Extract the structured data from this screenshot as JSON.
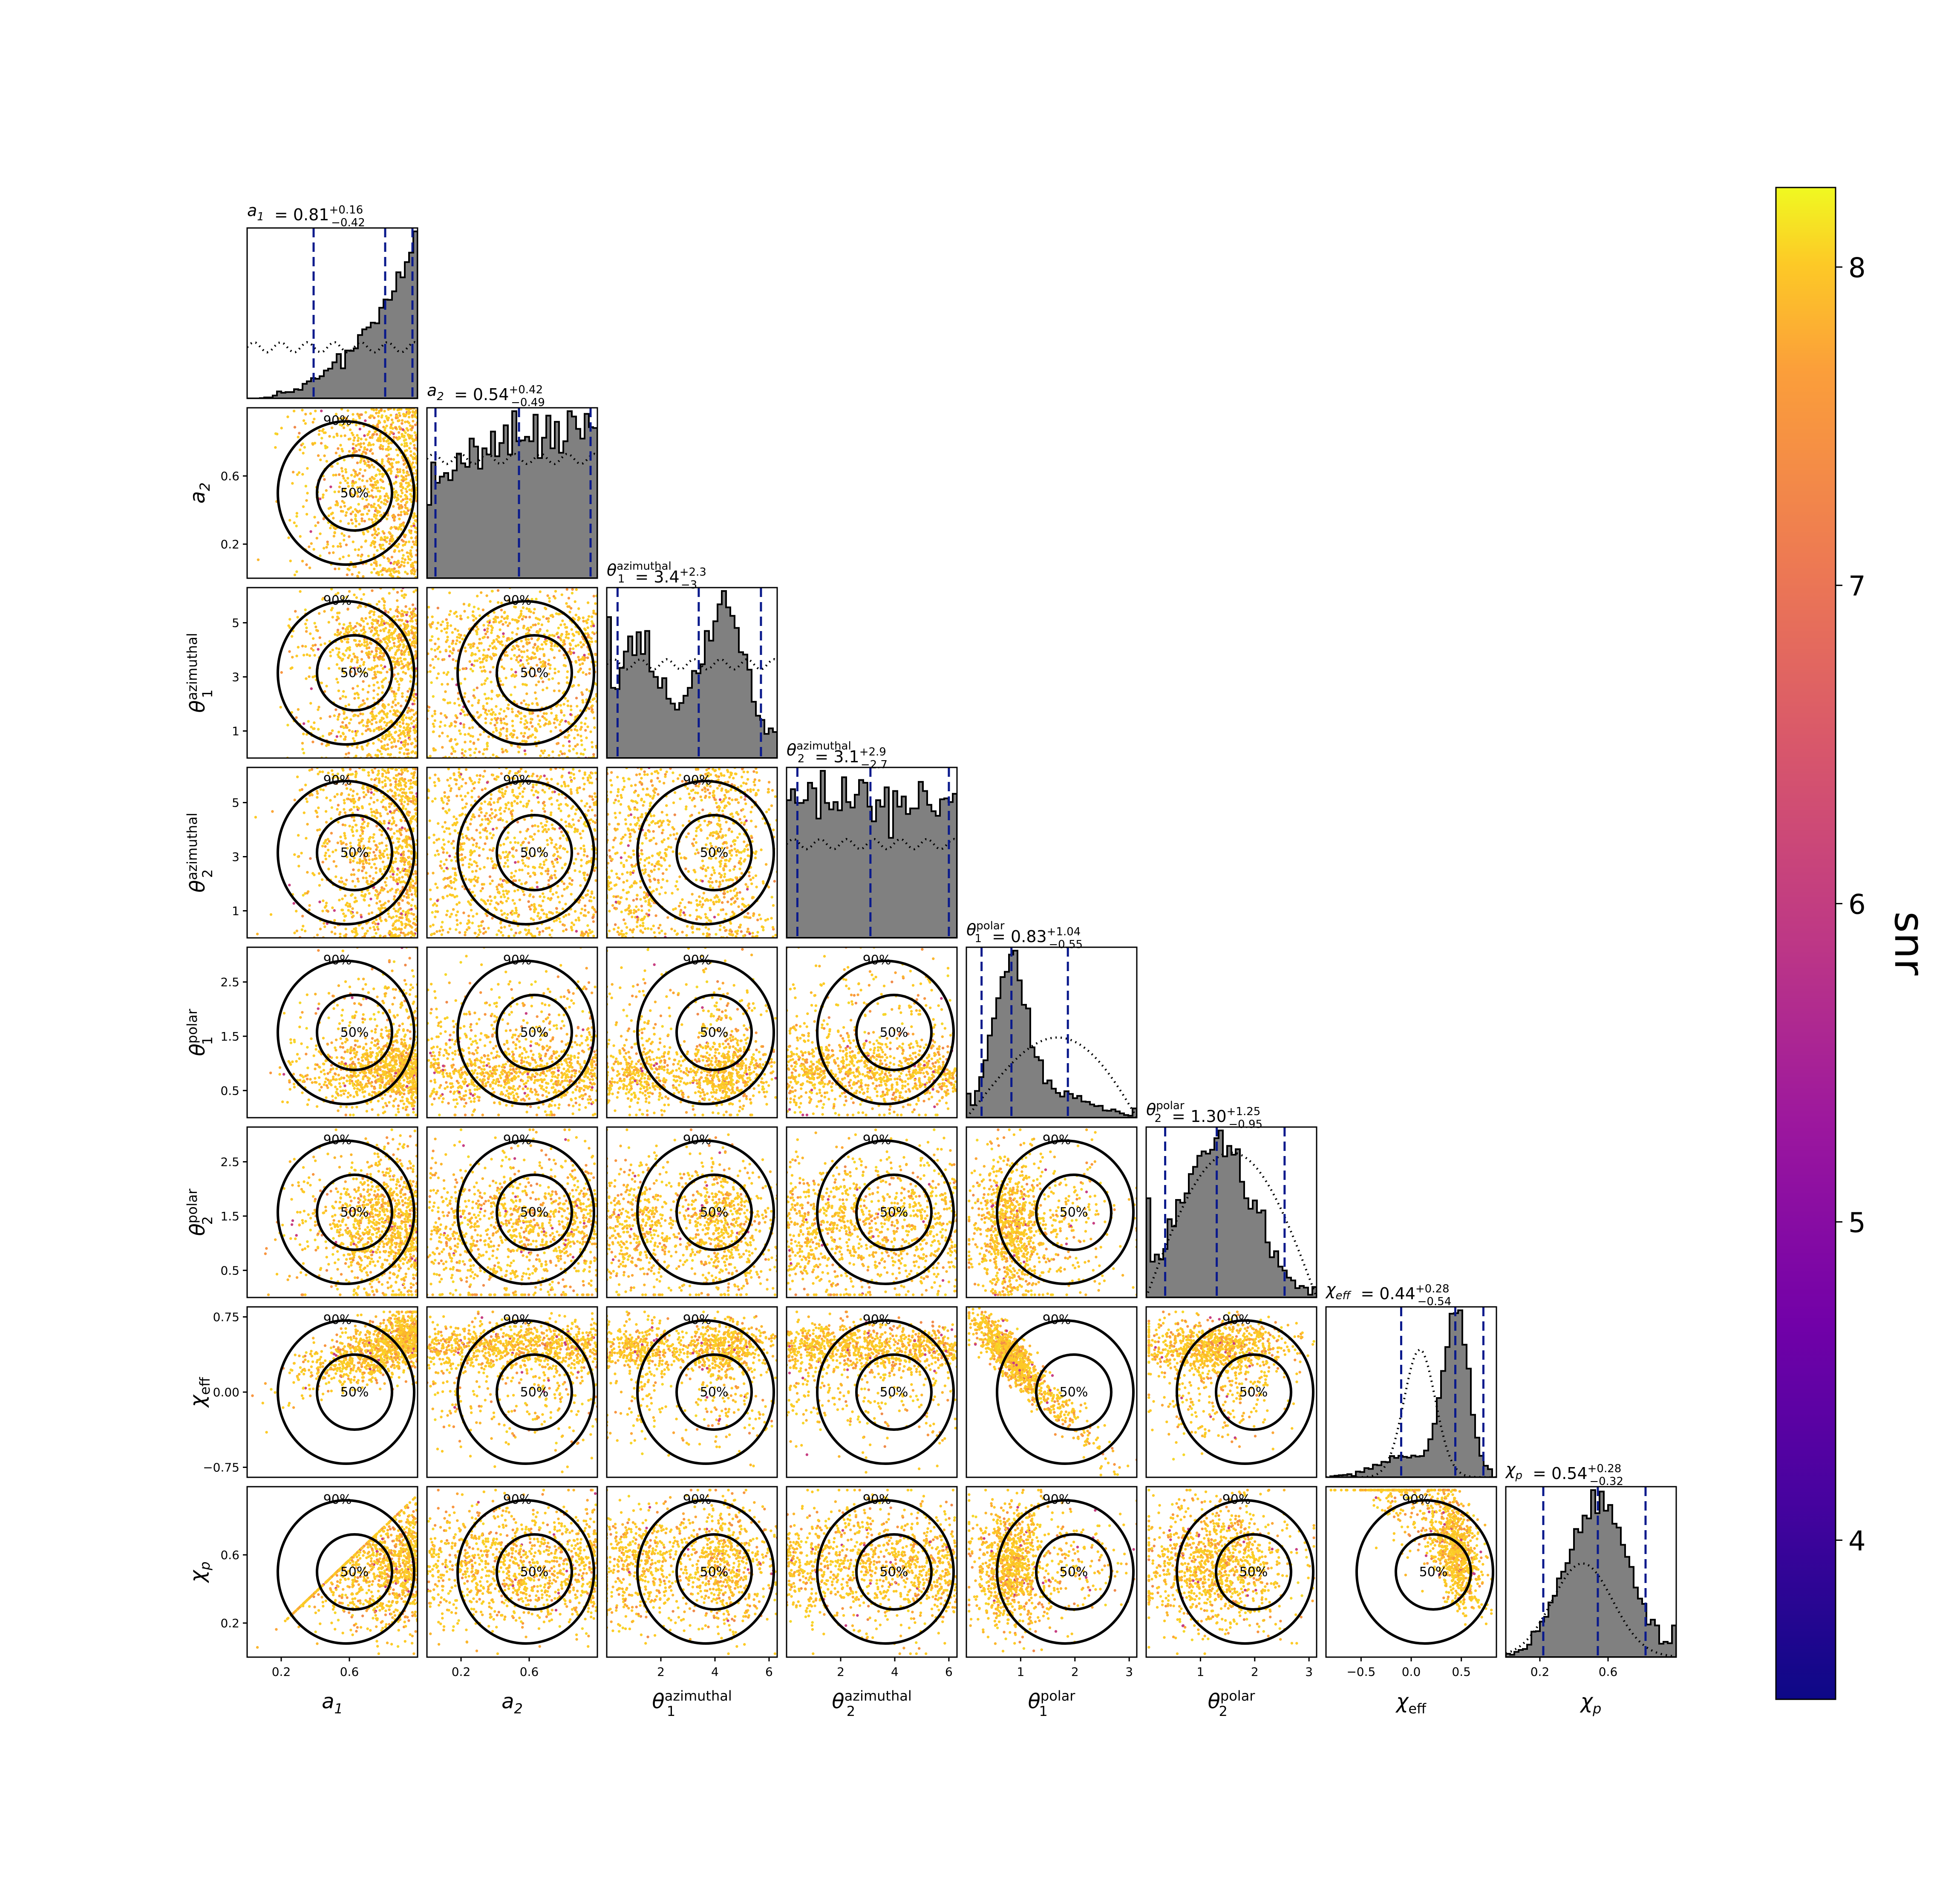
{
  "chart_data": {
    "type": "corner",
    "parameters": [
      {
        "key": "a1",
        "label": "a",
        "sub": "1",
        "sup": "",
        "range": [
          0.0,
          1.0
        ],
        "ticks": [
          0.2,
          0.6
        ],
        "tick_labels": [
          "0.2",
          "0.6"
        ],
        "title_value": "0.81",
        "title_plus": "+0.16",
        "title_minus": "−0.42",
        "quantiles": [
          0.39,
          0.81,
          0.97
        ]
      },
      {
        "key": "a2",
        "label": "a",
        "sub": "2",
        "sup": "",
        "range": [
          0.0,
          1.0
        ],
        "ticks": [
          0.2,
          0.6
        ],
        "tick_labels": [
          "0.2",
          "0.6"
        ],
        "title_value": "0.54",
        "title_plus": "+0.42",
        "title_minus": "−0.49",
        "quantiles": [
          0.05,
          0.54,
          0.96
        ]
      },
      {
        "key": "theta1_azimuthal",
        "label": "θ",
        "sub": "1",
        "sup": "azimuthal",
        "range": [
          0.0,
          6.3
        ],
        "ticks": [
          1,
          3,
          5
        ],
        "tick_labels": [
          "1",
          "3",
          "5"
        ],
        "xticks": [
          2,
          4,
          6
        ],
        "xtick_labels": [
          "2",
          "4",
          "6"
        ],
        "title_value": "3.4",
        "title_plus": "+2.3",
        "title_minus": "−3",
        "quantiles": [
          0.4,
          3.4,
          5.7
        ]
      },
      {
        "key": "theta2_azimuthal",
        "label": "θ",
        "sub": "2",
        "sup": "azimuthal",
        "range": [
          0.0,
          6.3
        ],
        "ticks": [
          1,
          3,
          5
        ],
        "tick_labels": [
          "1",
          "3",
          "5"
        ],
        "xticks": [
          2,
          4,
          6
        ],
        "xtick_labels": [
          "2",
          "4",
          "6"
        ],
        "title_value": "3.1",
        "title_plus": "+2.9",
        "title_minus": "−2.7",
        "quantiles": [
          0.4,
          3.1,
          6.0
        ]
      },
      {
        "key": "theta1_polar",
        "label": "θ",
        "sub": "1",
        "sup": "polar",
        "range": [
          0.0,
          3.14
        ],
        "ticks": [
          0.5,
          1.5,
          2.5
        ],
        "tick_labels": [
          "0.5",
          "1.5",
          "2.5"
        ],
        "xticks": [
          1,
          2,
          3
        ],
        "xtick_labels": [
          "1",
          "2",
          "3"
        ],
        "title_value": "0.83",
        "title_plus": "+1.04",
        "title_minus": "−0.55",
        "quantiles": [
          0.28,
          0.83,
          1.87
        ]
      },
      {
        "key": "theta2_polar",
        "label": "θ",
        "sub": "2",
        "sup": "polar",
        "range": [
          0.0,
          3.14
        ],
        "ticks": [
          0.5,
          1.5,
          2.5
        ],
        "tick_labels": [
          "0.5",
          "1.5",
          "2.5"
        ],
        "xticks": [
          1,
          2,
          3
        ],
        "xtick_labels": [
          "1",
          "2",
          "3"
        ],
        "title_value": "1.30",
        "title_plus": "+1.25",
        "title_minus": "−0.95",
        "quantiles": [
          0.35,
          1.3,
          2.55
        ]
      },
      {
        "key": "chi_eff",
        "label": "χ",
        "sub": "eff",
        "sup": "",
        "range": [
          -0.85,
          0.85
        ],
        "ticks": [
          -0.75,
          0.0,
          0.75
        ],
        "tick_labels": [
          "−0.75",
          "0.00",
          "0.75"
        ],
        "xticks": [
          -0.5,
          0.0,
          0.5
        ],
        "xtick_labels": [
          "−0.5",
          "0.0",
          "0.5"
        ],
        "title_value": "0.44",
        "title_plus": "+0.28",
        "title_minus": "−0.54",
        "quantiles": [
          -0.1,
          0.44,
          0.72
        ]
      },
      {
        "key": "chi_p",
        "label": "χ",
        "sub": "p",
        "sup": "",
        "range": [
          0.0,
          1.0
        ],
        "ticks": [
          0.2,
          0.6
        ],
        "tick_labels": [
          "0.2",
          "0.6"
        ],
        "title_value": "0.54",
        "title_plus": "+0.28",
        "title_minus": "−0.32",
        "quantiles": [
          0.22,
          0.54,
          0.82
        ]
      }
    ],
    "contour_levels": [
      "50%",
      "90%"
    ],
    "colorbar": {
      "label": "snr",
      "range": [
        3.5,
        8.25
      ],
      "ticks": [
        4,
        5,
        6,
        7,
        8
      ],
      "tick_labels": [
        "4",
        "5",
        "6",
        "7",
        "8"
      ],
      "colormap": "plasma"
    },
    "histogram_fill": "#808080",
    "quantile_line_color": "#0a1a8c"
  }
}
